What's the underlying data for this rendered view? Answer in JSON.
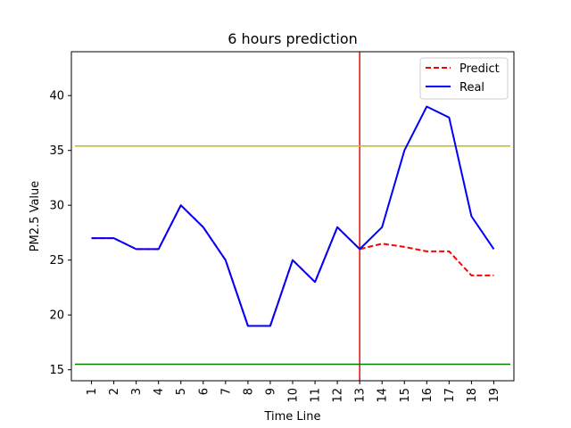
{
  "chart_data": {
    "type": "line",
    "title": "6 hours prediction",
    "xlabel": "Time Line",
    "ylabel": "PM2.5 Value",
    "categories": [
      "1",
      "2",
      "3",
      "4",
      "5",
      "6",
      "7",
      "8",
      "9",
      "10",
      "11",
      "12",
      "13",
      "14",
      "15",
      "16",
      "17",
      "18",
      "19"
    ],
    "xlim": [
      0.1,
      19.9
    ],
    "ylim": [
      14,
      44
    ],
    "yticks": [
      15,
      20,
      25,
      30,
      35,
      40
    ],
    "legend_position": "top-right",
    "grid": false,
    "series": [
      {
        "name": "Predict",
        "color": "#ff0000",
        "style": "dashed",
        "x": [
          1,
          2,
          3,
          4,
          5,
          6,
          7,
          8,
          9,
          10,
          11,
          12,
          13,
          14,
          15,
          16,
          17,
          18,
          19
        ],
        "values": [
          27,
          27,
          26,
          26,
          30,
          28,
          25,
          19,
          19,
          25,
          23,
          28,
          26,
          26.5,
          26.2,
          25.8,
          25.8,
          23.6,
          23.6
        ]
      },
      {
        "name": "Real",
        "color": "#0000ff",
        "style": "solid",
        "x": [
          1,
          2,
          3,
          4,
          5,
          6,
          7,
          8,
          9,
          10,
          11,
          12,
          13,
          14,
          15,
          16,
          17,
          18,
          19
        ],
        "values": [
          27,
          27,
          26,
          26,
          30,
          28,
          25,
          19,
          19,
          25,
          23,
          28,
          26,
          28,
          35,
          39,
          38,
          29,
          26
        ]
      }
    ],
    "reference_lines": [
      {
        "orientation": "vertical",
        "value": 13,
        "color": "#ff0000"
      },
      {
        "orientation": "horizontal",
        "value": 35.4,
        "color": "#bfbf00"
      },
      {
        "orientation": "horizontal",
        "value": 15.5,
        "color": "#008000"
      }
    ]
  }
}
